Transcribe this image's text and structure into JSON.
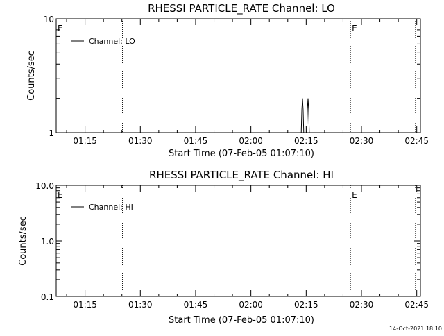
{
  "footer": "14-Oct-2021 18:10",
  "chart_data": [
    {
      "type": "line",
      "title": "RHESSI PARTICLE_RATE Channel: LO",
      "xlabel": "Start Time (07-Feb-05 01:07:10)",
      "ylabel": "Counts/sec",
      "yscale": "log",
      "ylim": [
        1,
        10
      ],
      "ytick_labels": [
        "1",
        "10"
      ],
      "xlim": [
        "01:07:10",
        "02:46:00"
      ],
      "xtick_labels": [
        "01:15",
        "01:30",
        "01:45",
        "02:00",
        "02:15",
        "02:30",
        "02:45"
      ],
      "legend": "top-left",
      "series": [
        {
          "name": "Channel: LO",
          "color": "#000000",
          "x": [
            "02:13:40",
            "02:13:50",
            "02:14:00",
            "02:14:10",
            "02:14:20",
            "02:15:10",
            "02:15:20",
            "02:15:30",
            "02:15:40",
            "02:15:50"
          ],
          "y": [
            1,
            1.6,
            2,
            1.6,
            1,
            1,
            1.6,
            2,
            1.6,
            1
          ]
        }
      ],
      "event_lines": [
        "01:25:10",
        "02:27:00",
        "02:44:40"
      ],
      "event_markers": [
        {
          "label": "E",
          "x": "01:07:10"
        },
        {
          "label": "E",
          "x": "02:27:00"
        }
      ]
    },
    {
      "type": "line",
      "title": "RHESSI PARTICLE_RATE Channel: HI",
      "xlabel": "Start Time (07-Feb-05 01:07:10)",
      "ylabel": "Counts/sec",
      "yscale": "log",
      "ylim": [
        0.1,
        10
      ],
      "ytick_labels": [
        "0.1",
        "1.0",
        "10.0"
      ],
      "xlim": [
        "01:07:10",
        "02:46:00"
      ],
      "xtick_labels": [
        "01:15",
        "01:30",
        "01:45",
        "02:00",
        "02:15",
        "02:30",
        "02:45"
      ],
      "legend": "top-left",
      "series": [
        {
          "name": "Channel: HI",
          "color": "#000000",
          "x": [],
          "y": []
        }
      ],
      "event_lines": [
        "01:25:10",
        "02:27:00",
        "02:44:40"
      ],
      "event_markers": [
        {
          "label": "E",
          "x": "01:07:10"
        },
        {
          "label": "E",
          "x": "02:27:00"
        }
      ]
    }
  ]
}
